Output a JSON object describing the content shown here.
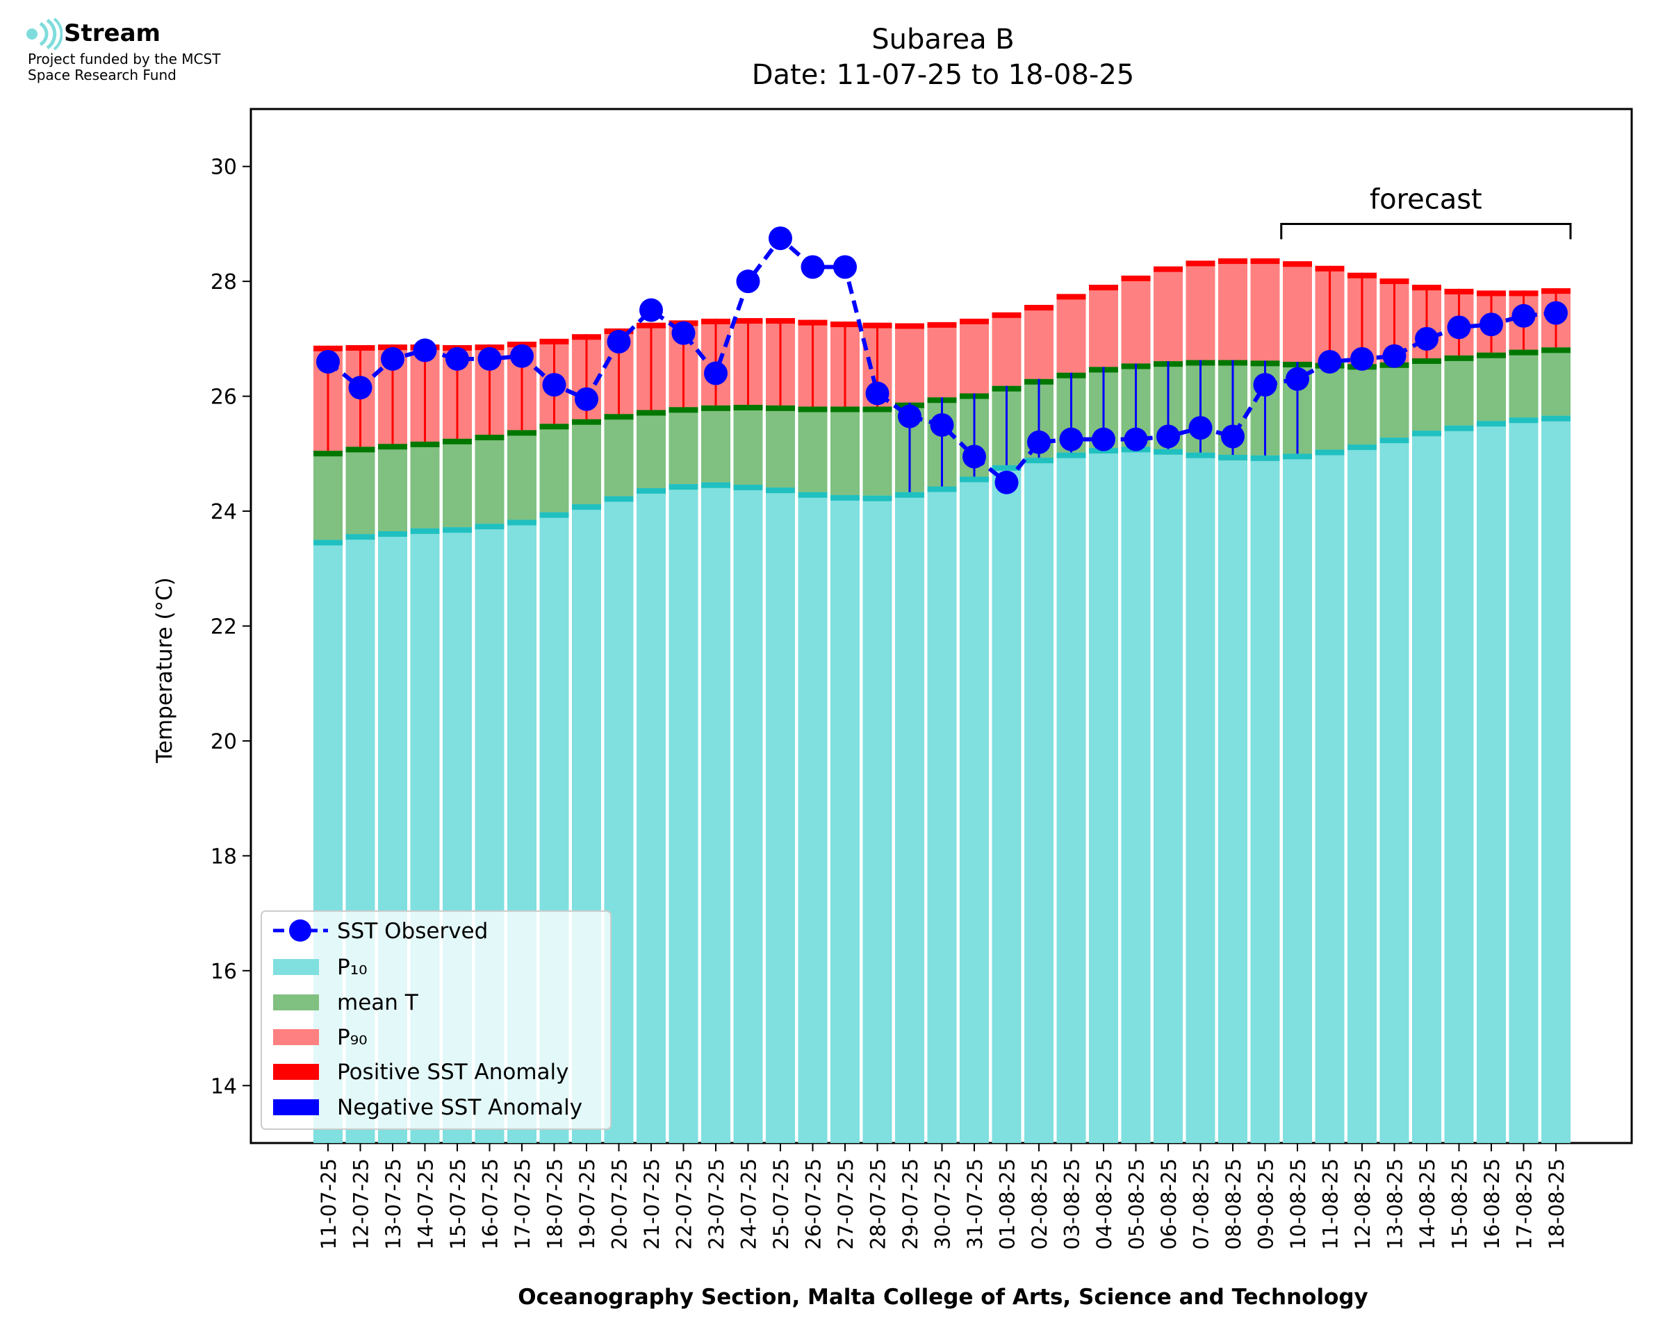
{
  "logo": {
    "name": "Stream",
    "line1": "Project funded by the MCST",
    "line2": "Space Research Fund",
    "icon": "stream-waves-icon",
    "color": "#7fdcdc"
  },
  "chart_data": {
    "type": "bar",
    "title": "Subarea B",
    "subtitle": "Date: 11-07-25 to 18-08-25",
    "xlabel": "Oceanography Section, Malta College of Arts, Science and Technology",
    "ylabel": "Temperature (°C)",
    "ylim": [
      13,
      31
    ],
    "yticks": [
      14,
      16,
      18,
      20,
      22,
      24,
      26,
      28,
      30
    ],
    "grid": false,
    "legend_position": "bottom-left",
    "colors": {
      "p10": "#80dfdf",
      "p10_edge": "#20c0c0",
      "mean": "#80c080",
      "mean_edge": "#007800",
      "p90": "#ff8080",
      "p90_edge": "#ff0000",
      "observed": "#0000ff",
      "positive_anomaly": "#ff0000",
      "negative_anomaly": "#0000ff"
    },
    "categories": [
      "11-07-25",
      "12-07-25",
      "13-07-25",
      "14-07-25",
      "15-07-25",
      "16-07-25",
      "17-07-25",
      "18-07-25",
      "19-07-25",
      "20-07-25",
      "21-07-25",
      "22-07-25",
      "23-07-25",
      "24-07-25",
      "25-07-25",
      "26-07-25",
      "27-07-25",
      "28-07-25",
      "29-07-25",
      "30-07-25",
      "31-07-25",
      "01-08-25",
      "02-08-25",
      "03-08-25",
      "04-08-25",
      "05-08-25",
      "06-08-25",
      "07-08-25",
      "08-08-25",
      "09-08-25",
      "10-08-25",
      "11-08-25",
      "12-08-25",
      "13-08-25",
      "14-08-25",
      "15-08-25",
      "16-08-25",
      "17-08-25",
      "18-08-25"
    ],
    "series": [
      {
        "name": "SST Observed",
        "values": [
          26.6,
          26.15,
          26.65,
          26.8,
          26.65,
          26.65,
          26.7,
          26.2,
          25.95,
          26.95,
          27.5,
          27.1,
          26.4,
          28.0,
          28.75,
          28.25,
          28.25,
          26.05,
          25.65,
          25.5,
          24.95,
          24.5,
          25.2,
          25.25,
          25.25,
          25.25,
          25.3,
          25.45,
          25.3,
          26.2,
          26.3,
          26.6,
          26.65,
          26.7,
          27.0,
          27.2,
          27.25,
          27.4,
          27.45
        ]
      },
      {
        "name": "P₁₀",
        "values": [
          23.5,
          23.6,
          23.65,
          23.7,
          23.72,
          23.78,
          23.85,
          23.98,
          24.12,
          24.26,
          24.4,
          24.47,
          24.5,
          24.46,
          24.41,
          24.33,
          24.28,
          24.27,
          24.33,
          24.43,
          24.6,
          24.8,
          24.93,
          25.02,
          25.1,
          25.12,
          25.08,
          25.02,
          24.98,
          24.97,
          25.0,
          25.07,
          25.16,
          25.28,
          25.4,
          25.49,
          25.57,
          25.63,
          25.66
        ]
      },
      {
        "name": "mean T",
        "values": [
          25.05,
          25.12,
          25.17,
          25.21,
          25.26,
          25.33,
          25.41,
          25.52,
          25.6,
          25.69,
          25.76,
          25.81,
          25.84,
          25.85,
          25.84,
          25.82,
          25.82,
          25.82,
          25.89,
          25.98,
          26.05,
          26.18,
          26.3,
          26.41,
          26.51,
          26.57,
          26.61,
          26.63,
          26.63,
          26.62,
          26.6,
          26.58,
          26.56,
          26.59,
          26.66,
          26.71,
          26.76,
          26.81,
          26.85
        ]
      },
      {
        "name": "P₉₀",
        "values": [
          26.88,
          26.89,
          26.9,
          26.9,
          26.89,
          26.9,
          26.95,
          27.0,
          27.08,
          27.18,
          27.28,
          27.32,
          27.35,
          27.36,
          27.36,
          27.33,
          27.3,
          27.28,
          27.27,
          27.29,
          27.35,
          27.46,
          27.59,
          27.78,
          27.94,
          28.1,
          28.26,
          28.36,
          28.4,
          28.4,
          28.35,
          28.27,
          28.15,
          28.05,
          27.94,
          27.87,
          27.84,
          27.84,
          27.88
        ]
      }
    ],
    "anomaly_legend": [
      "Positive SST Anomaly",
      "Negative SST Anomaly"
    ],
    "annotation": {
      "text": "forecast",
      "start": "10-08-25",
      "end": "18-08-25",
      "y": 29.0
    }
  }
}
